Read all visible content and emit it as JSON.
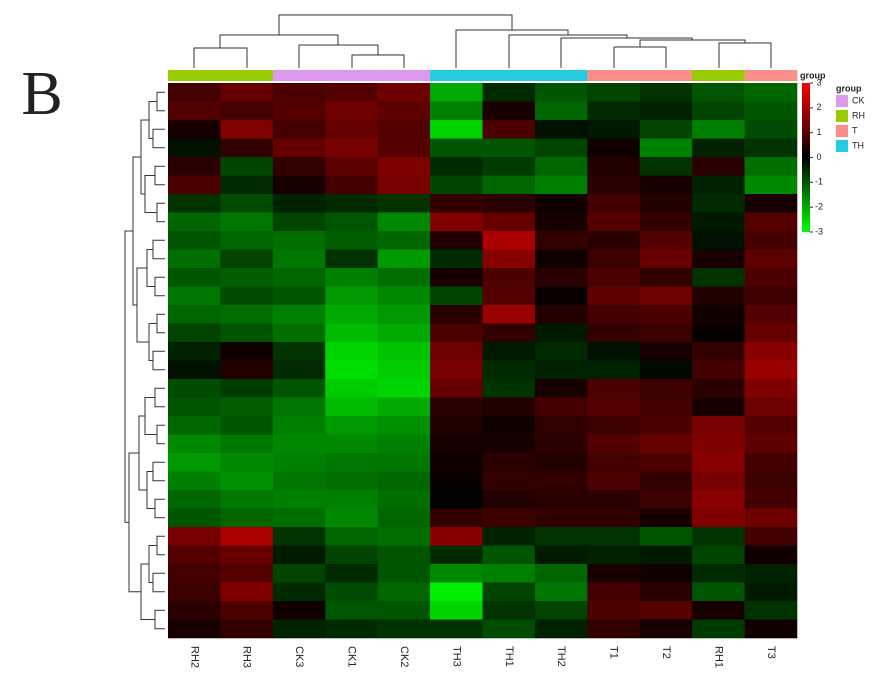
{
  "panel_label": "B",
  "chart_data": {
    "type": "heatmap",
    "columns": [
      "RH2",
      "RH3",
      "CK3",
      "CK1",
      "CK2",
      "TH3",
      "TH1",
      "TH2",
      "T1",
      "T2",
      "RH1",
      "T3"
    ],
    "column_groups": [
      "RH",
      "RH",
      "CK",
      "CK",
      "CK",
      "TH",
      "TH",
      "TH",
      "T",
      "T",
      "RH",
      "T"
    ],
    "colorscale": [
      "#00ff00",
      "#000000",
      "#ff0000"
    ],
    "zlim": [
      -3,
      3
    ],
    "zticks": [
      3,
      2,
      1,
      0,
      -1,
      -2,
      -3
    ],
    "colorbar_title": "group",
    "legend": {
      "title": "group",
      "items": [
        {
          "name": "CK",
          "color": "#dd99ee"
        },
        {
          "name": "RH",
          "color": "#99cc00"
        },
        {
          "name": "T",
          "color": "#f99088"
        },
        {
          "name": "TH",
          "color": "#22ccdd"
        }
      ]
    },
    "z": [
      [
        0.8,
        1.2,
        0.9,
        1.0,
        1.3,
        -2.0,
        -0.5,
        -1.0,
        -0.8,
        -0.6,
        -1.0,
        -1.2
      ],
      [
        1.0,
        0.8,
        1.0,
        1.3,
        1.1,
        -1.5,
        0.3,
        -1.2,
        -0.5,
        -0.4,
        -0.8,
        -1.0
      ],
      [
        0.3,
        1.5,
        0.8,
        1.2,
        1.0,
        -2.5,
        0.9,
        -0.2,
        -0.3,
        -0.8,
        -1.5,
        -0.9
      ],
      [
        -0.2,
        0.6,
        1.2,
        1.4,
        1.0,
        -1.0,
        -1.0,
        -0.8,
        0.2,
        -1.5,
        -0.4,
        -0.6
      ],
      [
        0.5,
        -0.8,
        0.6,
        1.1,
        1.5,
        -0.5,
        -0.7,
        -1.2,
        0.4,
        -0.6,
        0.5,
        -1.3
      ],
      [
        0.9,
        -0.5,
        0.3,
        0.8,
        1.4,
        -0.8,
        -1.2,
        -1.5,
        0.5,
        0.3,
        -0.4,
        -1.6
      ],
      [
        -0.6,
        -0.9,
        -0.4,
        -0.5,
        -0.6,
        0.6,
        0.5,
        0.2,
        0.8,
        0.4,
        -0.5,
        0.3
      ],
      [
        -1.2,
        -1.4,
        -0.8,
        -1.0,
        -1.6,
        1.5,
        1.2,
        0.3,
        1.0,
        0.6,
        -0.3,
        1.0
      ],
      [
        -1.0,
        -1.2,
        -1.3,
        -1.1,
        -1.2,
        0.4,
        2.0,
        0.6,
        0.5,
        1.0,
        -0.2,
        0.8
      ],
      [
        -1.3,
        -0.8,
        -1.4,
        -0.6,
        -1.8,
        -0.5,
        1.6,
        0.2,
        0.7,
        1.2,
        0.3,
        1.1
      ],
      [
        -1.0,
        -1.1,
        -1.2,
        -1.5,
        -1.3,
        0.3,
        0.9,
        0.5,
        0.9,
        0.6,
        -0.6,
        0.9
      ],
      [
        -1.4,
        -0.9,
        -1.0,
        -1.8,
        -1.6,
        -0.8,
        1.0,
        0.1,
        1.1,
        1.3,
        0.4,
        0.7
      ],
      [
        -1.2,
        -1.3,
        -1.5,
        -2.0,
        -1.8,
        0.5,
        1.8,
        0.4,
        0.8,
        0.9,
        0.2,
        1.0
      ],
      [
        -0.8,
        -1.0,
        -1.3,
        -2.2,
        -2.0,
        0.9,
        0.6,
        -0.3,
        0.6,
        0.7,
        0.1,
        1.2
      ],
      [
        -0.4,
        0.2,
        -0.6,
        -2.5,
        -2.3,
        1.3,
        -0.3,
        -0.5,
        -0.2,
        0.3,
        0.6,
        1.6
      ],
      [
        -0.2,
        0.4,
        -0.5,
        -2.6,
        -2.4,
        1.4,
        -0.5,
        -0.4,
        -0.4,
        -0.1,
        0.8,
        1.8
      ],
      [
        -0.9,
        -0.7,
        -1.0,
        -2.4,
        -2.5,
        1.2,
        -0.6,
        0.3,
        0.9,
        0.7,
        0.5,
        1.5
      ],
      [
        -1.0,
        -1.1,
        -1.4,
        -2.2,
        -2.0,
        0.5,
        0.4,
        0.8,
        1.0,
        0.8,
        0.3,
        1.3
      ],
      [
        -1.2,
        -1.0,
        -1.5,
        -1.8,
        -1.7,
        0.4,
        0.2,
        0.6,
        0.7,
        0.9,
        1.4,
        1.0
      ],
      [
        -1.6,
        -1.4,
        -1.6,
        -1.6,
        -1.5,
        0.3,
        0.3,
        0.5,
        1.0,
        1.2,
        1.5,
        1.1
      ],
      [
        -1.8,
        -1.6,
        -1.5,
        -1.4,
        -1.4,
        0.2,
        0.5,
        0.4,
        0.8,
        0.9,
        1.6,
        0.8
      ],
      [
        -1.5,
        -1.7,
        -1.4,
        -1.3,
        -1.2,
        0.1,
        0.6,
        0.6,
        0.9,
        0.6,
        1.4,
        0.7
      ],
      [
        -1.2,
        -1.4,
        -1.5,
        -1.5,
        -1.3,
        0.0,
        0.4,
        0.5,
        0.5,
        0.7,
        1.6,
        0.8
      ],
      [
        -1.0,
        -1.2,
        -1.3,
        -1.6,
        -1.2,
        0.6,
        0.7,
        0.6,
        0.6,
        0.3,
        1.5,
        1.3
      ],
      [
        1.4,
        2.0,
        -0.6,
        -1.2,
        -1.3,
        1.6,
        -0.4,
        -0.6,
        -0.6,
        -1.0,
        -0.6,
        0.8
      ],
      [
        1.0,
        1.2,
        -0.3,
        -0.8,
        -1.0,
        -0.5,
        -1.0,
        -0.3,
        -0.4,
        -0.3,
        -0.8,
        0.2
      ],
      [
        0.8,
        1.0,
        -0.8,
        -0.5,
        -1.0,
        -1.6,
        -1.5,
        -1.2,
        0.3,
        0.2,
        -0.5,
        -0.4
      ],
      [
        0.7,
        1.5,
        -0.5,
        -0.9,
        -1.2,
        -2.8,
        -0.8,
        -1.4,
        0.8,
        0.5,
        -1.0,
        -0.3
      ],
      [
        0.5,
        0.9,
        0.2,
        -1.0,
        -1.0,
        -2.5,
        -0.6,
        -0.8,
        0.9,
        1.0,
        0.3,
        -0.6
      ],
      [
        0.3,
        0.6,
        -0.4,
        -0.5,
        -0.6,
        -0.6,
        -0.9,
        -0.4,
        0.6,
        0.3,
        -0.7,
        0.2
      ]
    ]
  }
}
